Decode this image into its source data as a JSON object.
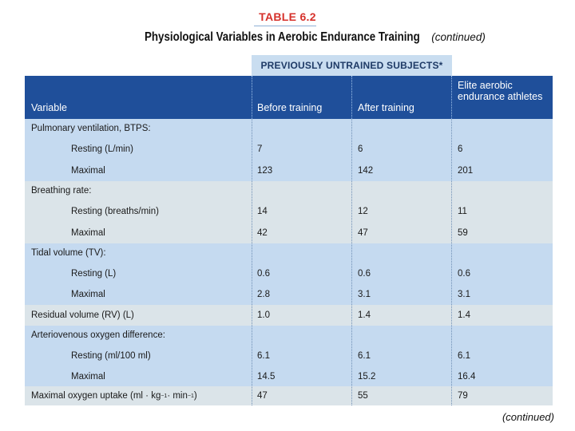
{
  "table_label": "TABLE 6.2",
  "title": "Physiological Variables in Aerobic Endurance Training",
  "title_continued": "(continued)",
  "group_header": "PREVIOUSLY UNTRAINED SUBJECTS*",
  "columns": {
    "variable": "Variable",
    "before": "Before training",
    "after": "After training",
    "elite": "Elite aerobic endurance athletes"
  },
  "rows": [
    {
      "label": "Pulmonary ventilation, BTPS:",
      "before": "",
      "after": "",
      "elite": ""
    },
    {
      "label": "Resting (L/min)",
      "before": "7",
      "after": "6",
      "elite": "6"
    },
    {
      "label": "Maximal",
      "before": "123",
      "after": "142",
      "elite": "201"
    },
    {
      "label": "Breathing rate:",
      "before": "",
      "after": "",
      "elite": ""
    },
    {
      "label": "Resting (breaths/min)",
      "before": "14",
      "after": "12",
      "elite": "11"
    },
    {
      "label": "Maximal",
      "before": "42",
      "after": "47",
      "elite": "59"
    },
    {
      "label": "Tidal volume (TV):",
      "before": "",
      "after": "",
      "elite": ""
    },
    {
      "label": "Resting (L)",
      "before": "0.6",
      "after": "0.6",
      "elite": "0.6"
    },
    {
      "label": "Maximal",
      "before": "2.8",
      "after": "3.1",
      "elite": "3.1"
    },
    {
      "label": "Residual volume (RV) (L)",
      "before": "1.0",
      "after": "1.4",
      "elite": "1.4"
    },
    {
      "label": "Arteriovenous oxygen difference:",
      "before": "",
      "after": "",
      "elite": ""
    },
    {
      "label": "Resting (ml/100 ml)",
      "before": "6.1",
      "after": "6.1",
      "elite": "6.1"
    },
    {
      "label": "Maximal",
      "before": "14.5",
      "after": "15.2",
      "elite": "16.4"
    },
    {
      "label_prefix": "Maximal oxygen uptake (ml · kg",
      "label_sup1": "−1",
      "label_mid": " · min",
      "label_sup2": "−1",
      "label_suffix": ")",
      "before": "47",
      "after": "55",
      "elite": "79"
    }
  ],
  "footer_continued": "(continued)"
}
